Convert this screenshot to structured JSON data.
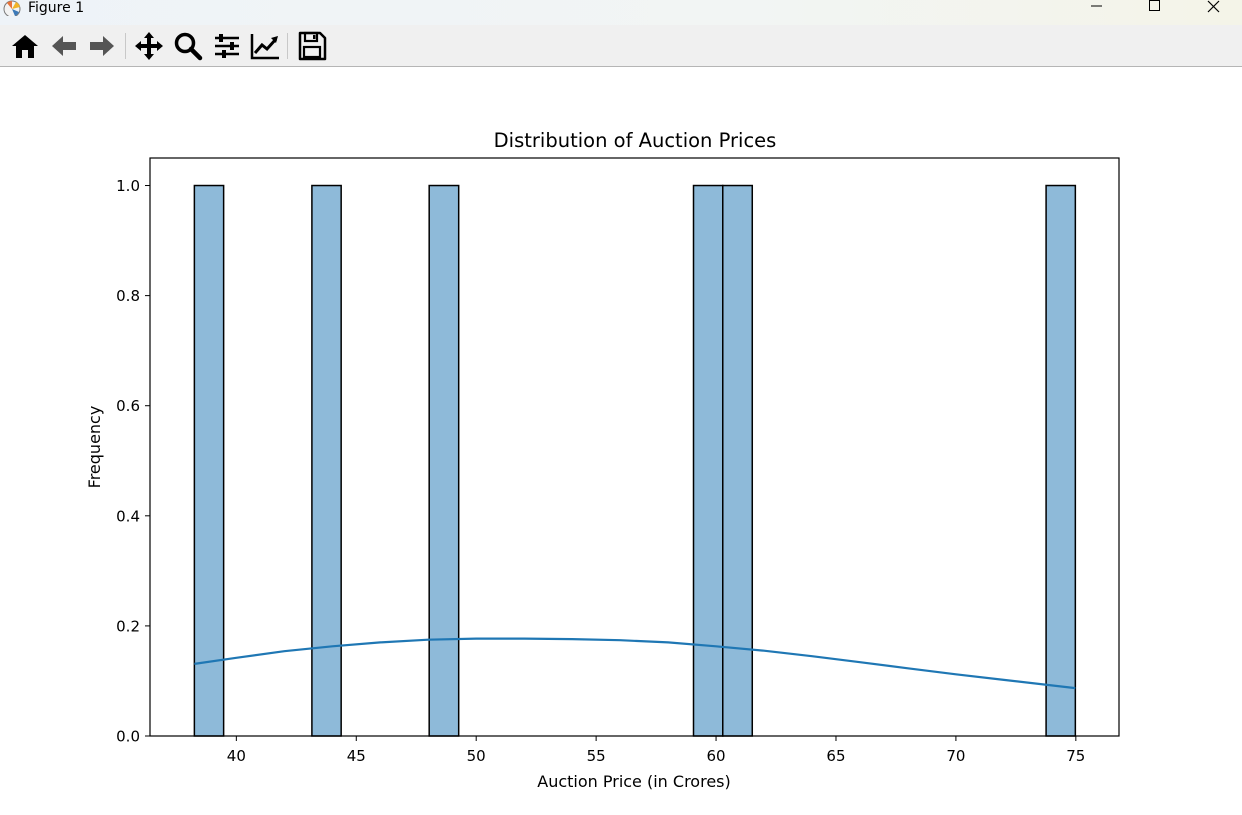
{
  "window": {
    "title": "Figure 1",
    "icons": [
      "matplotlib-app-icon",
      "minimize-icon",
      "maximize-icon",
      "close-icon"
    ]
  },
  "toolbar": {
    "buttons": [
      {
        "name": "home-icon"
      },
      {
        "name": "back-arrow-icon"
      },
      {
        "name": "forward-arrow-icon"
      },
      {
        "name": "pan-move-icon"
      },
      {
        "name": "zoom-magnifier-icon"
      },
      {
        "name": "configure-subplots-icon"
      },
      {
        "name": "edit-axis-icon"
      },
      {
        "name": "save-figure-icon"
      }
    ]
  },
  "chart_data": {
    "type": "bar",
    "title": "Distribution of Auction Prices",
    "xlabel": "Auction Price (in Crores)",
    "ylabel": "Frequency",
    "xlim": [
      36.4,
      76.8
    ],
    "ylim": [
      0.0,
      1.05
    ],
    "xticks": [
      40,
      45,
      50,
      55,
      60,
      65,
      70,
      75
    ],
    "yticks": [
      "0.0",
      "0.2",
      "0.4",
      "0.6",
      "0.8",
      "1.0"
    ],
    "bins": [
      {
        "start": 38.25,
        "end": 39.47,
        "count": 1
      },
      {
        "start": 43.15,
        "end": 44.37,
        "count": 1
      },
      {
        "start": 48.04,
        "end": 49.27,
        "count": 1
      },
      {
        "start": 59.06,
        "end": 60.28,
        "count": 1
      },
      {
        "start": 60.28,
        "end": 61.51,
        "count": 1
      },
      {
        "start": 73.76,
        "end": 74.98,
        "count": 1
      }
    ],
    "kde": {
      "x": [
        38.25,
        40,
        42,
        44,
        46,
        48,
        50,
        52,
        54,
        56,
        58,
        60,
        62,
        64,
        66,
        68,
        70,
        72,
        74.98
      ],
      "y": [
        0.131,
        0.142,
        0.154,
        0.163,
        0.17,
        0.175,
        0.177,
        0.177,
        0.176,
        0.174,
        0.17,
        0.163,
        0.155,
        0.145,
        0.134,
        0.123,
        0.112,
        0.102,
        0.087
      ]
    },
    "grid": false,
    "legend": "none",
    "colors": {
      "bar_fill": "#8ebad9",
      "bar_edge": "#000000",
      "kde_line": "#1f77b4"
    }
  }
}
